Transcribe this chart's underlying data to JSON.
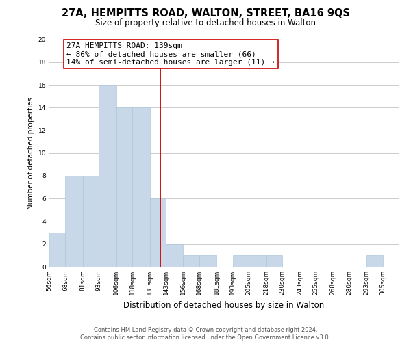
{
  "title": "27A, HEMPITTS ROAD, WALTON, STREET, BA16 9QS",
  "subtitle": "Size of property relative to detached houses in Walton",
  "xlabel": "Distribution of detached houses by size in Walton",
  "ylabel": "Number of detached properties",
  "bin_labels": [
    "56sqm",
    "68sqm",
    "81sqm",
    "93sqm",
    "106sqm",
    "118sqm",
    "131sqm",
    "143sqm",
    "156sqm",
    "168sqm",
    "181sqm",
    "193sqm",
    "205sqm",
    "218sqm",
    "230sqm",
    "243sqm",
    "255sqm",
    "268sqm",
    "280sqm",
    "293sqm",
    "305sqm"
  ],
  "bin_edges": [
    56,
    68,
    81,
    93,
    106,
    118,
    131,
    143,
    156,
    168,
    181,
    193,
    205,
    218,
    230,
    243,
    255,
    268,
    280,
    293,
    305
  ],
  "counts": [
    3,
    8,
    8,
    16,
    14,
    14,
    6,
    2,
    1,
    1,
    0,
    1,
    1,
    1,
    0,
    0,
    0,
    0,
    0,
    1
  ],
  "bar_color": "#c8d8e8",
  "bar_edge_color": "#aec8dc",
  "property_line_x": 139,
  "property_line_color": "#cc0000",
  "annotation_title": "27A HEMPITTS ROAD: 139sqm",
  "annotation_line1": "← 86% of detached houses are smaller (66)",
  "annotation_line2": "14% of semi-detached houses are larger (11) →",
  "annotation_box_color": "#ffffff",
  "annotation_box_edge": "#cc0000",
  "ylim": [
    0,
    20
  ],
  "yticks": [
    0,
    2,
    4,
    6,
    8,
    10,
    12,
    14,
    16,
    18,
    20
  ],
  "footer1": "Contains HM Land Registry data © Crown copyright and database right 2024.",
  "footer2": "Contains public sector information licensed under the Open Government Licence v3.0.",
  "background_color": "#ffffff",
  "grid_color": "#cccccc",
  "title_fontsize": 10.5,
  "subtitle_fontsize": 8.5,
  "xlabel_fontsize": 8.5,
  "ylabel_fontsize": 7.5,
  "tick_fontsize": 6.5,
  "annotation_fontsize": 8.0,
  "footer_fontsize": 6.0
}
